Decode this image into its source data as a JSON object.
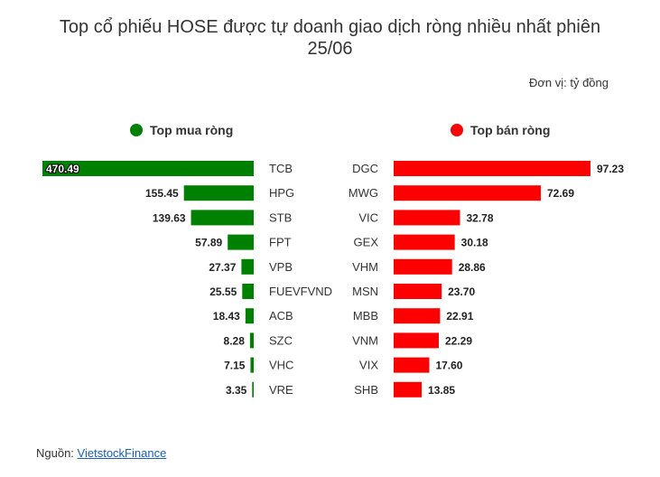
{
  "chart_data": {
    "type": "bar",
    "title_lines": [
      "Top cổ phiếu HOSE được tự doanh giao dịch ròng nhiều nhất phiên",
      "25/06"
    ],
    "unit_label": "Đơn vị: tỷ đồng",
    "source_prefix": "Nguồn: ",
    "source_link": "VietstockFinance",
    "buy": {
      "name": "Top mua ròng",
      "color": "#008000",
      "categories": [
        "TCB",
        "HPG",
        "STB",
        "FPT",
        "VPB",
        "FUEVFVND",
        "ACB",
        "SZC",
        "VHC",
        "VRE"
      ],
      "values": [
        470.49,
        155.45,
        139.63,
        57.89,
        27.37,
        25.55,
        18.43,
        8.28,
        7.15,
        3.35
      ],
      "value_labels": [
        "470.49",
        "155.45",
        "139.63",
        "57.89",
        "27.37",
        "25.55",
        "18.43",
        "8.28",
        "7.15",
        "3.35"
      ]
    },
    "sell": {
      "name": "Top bán ròng",
      "color": "#ff0000",
      "categories": [
        "DGC",
        "MWG",
        "VIC",
        "GEX",
        "VHM",
        "MSN",
        "MBB",
        "VNM",
        "VIX",
        "SHB"
      ],
      "values": [
        97.23,
        72.69,
        32.78,
        30.18,
        28.86,
        23.7,
        22.91,
        22.29,
        17.6,
        13.85
      ],
      "value_labels": [
        "97.23",
        "72.69",
        "32.78",
        "30.18",
        "28.86",
        "23.70",
        "22.91",
        "22.29",
        "17.60",
        "13.85"
      ]
    },
    "grid": false
  }
}
